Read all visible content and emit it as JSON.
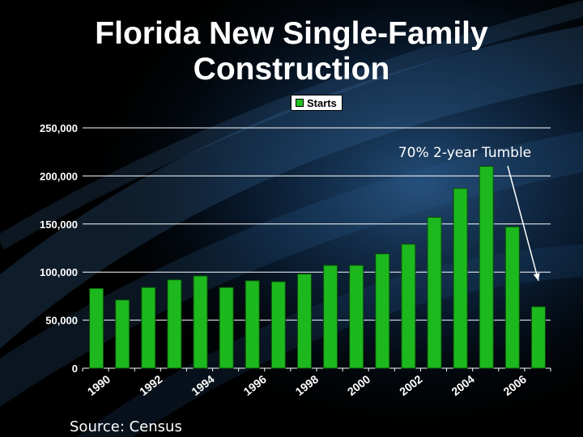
{
  "title_line1": "Florida New Single-Family",
  "title_line2": "Construction",
  "source": "Source: Census",
  "colors": {
    "bar": "#1db81d",
    "bar_edge": "#0a4d0a",
    "text": "#ffffff",
    "grid": "#ffffff"
  },
  "chart_data": {
    "type": "bar",
    "title": "Florida New Single-Family Construction",
    "legend": {
      "entries": [
        "Starts"
      ],
      "placement": "top-center"
    },
    "series": [
      {
        "name": "Starts",
        "values": [
          83000,
          71000,
          84000,
          92000,
          96000,
          84000,
          91000,
          90000,
          98000,
          107000,
          107000,
          119000,
          129000,
          157000,
          187000,
          210000,
          147000,
          64000
        ]
      }
    ],
    "categories": [
      "1990",
      "1991",
      "1992",
      "1993",
      "1994",
      "1995",
      "1996",
      "1997",
      "1998",
      "1999",
      "2000",
      "2001",
      "2002",
      "2003",
      "2004",
      "2005",
      "2006",
      "2007"
    ],
    "x_tick_labels": [
      "1990",
      "1992",
      "1994",
      "1996",
      "1998",
      "2000",
      "2002",
      "2004",
      "2006"
    ],
    "y_tick_labels": [
      "0",
      "50,000",
      "100,000",
      "150,000",
      "200,000",
      "250,000"
    ],
    "y_ticks": [
      0,
      50000,
      100000,
      150000,
      200000,
      250000
    ],
    "ylim": [
      0,
      250000
    ],
    "grid": true,
    "annotation": {
      "text": "70% 2-year Tumble",
      "points_to": "2007"
    }
  }
}
